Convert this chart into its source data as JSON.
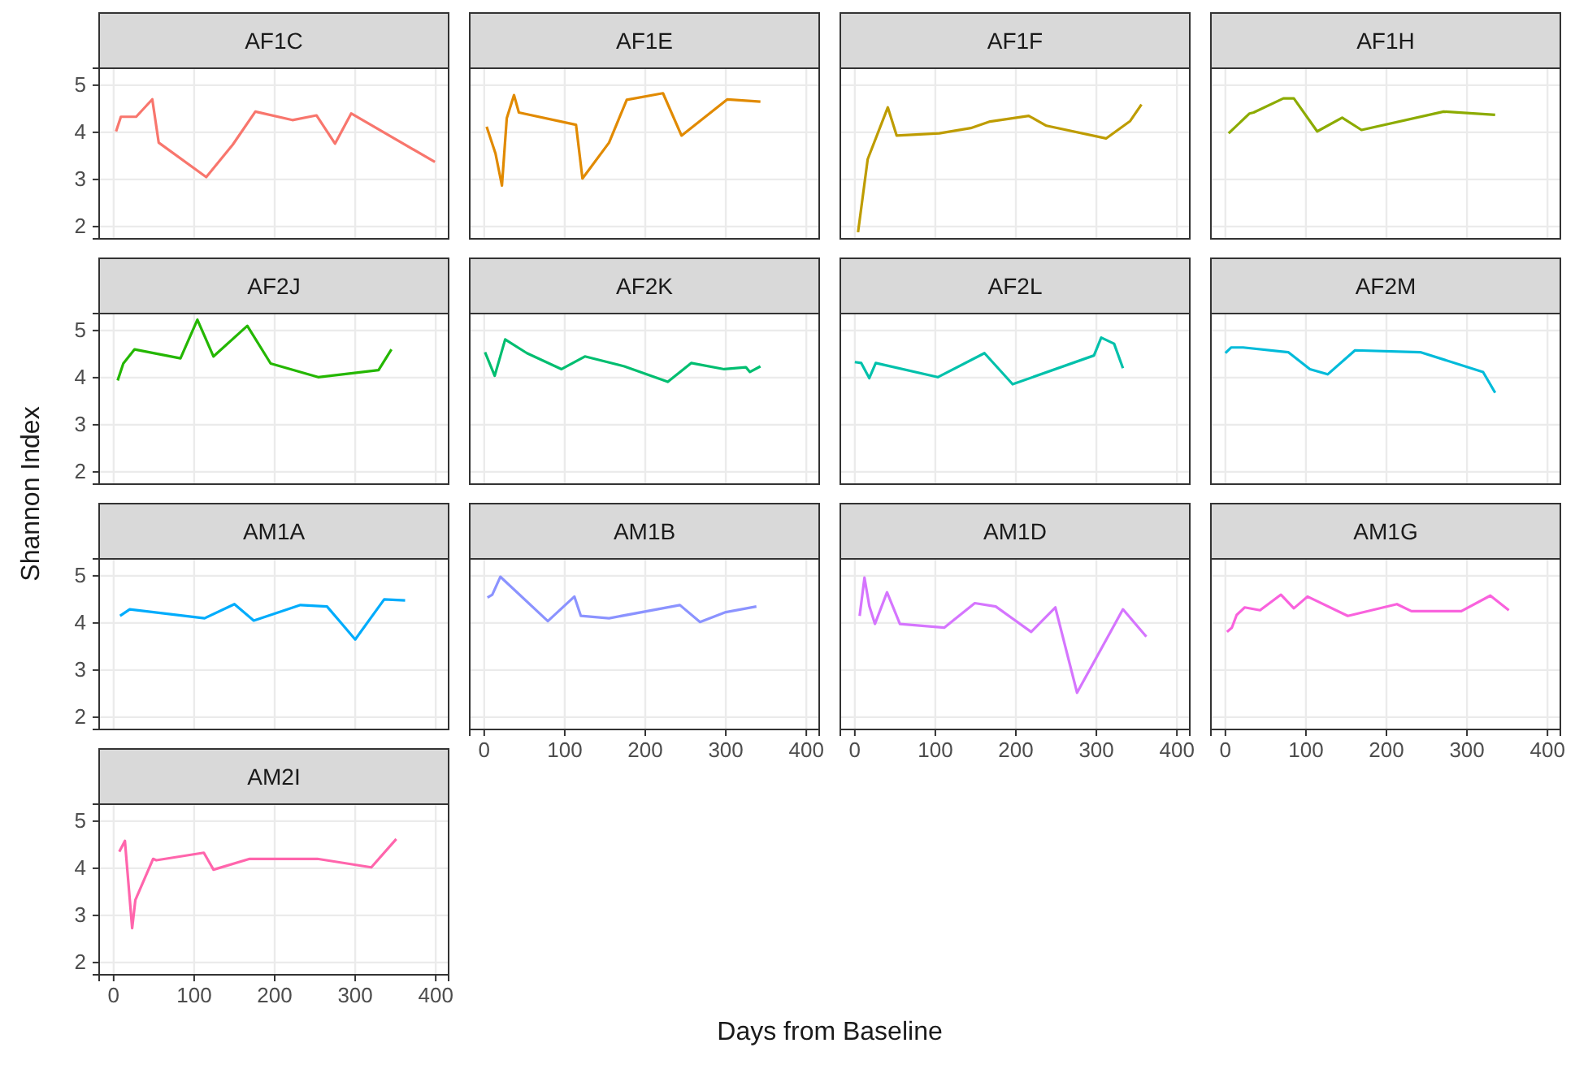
{
  "chart_data": [
    {
      "type": "line",
      "title": "AF1C",
      "annotations": [
        "Shannon Index",
        "Days from Baseline"
      ],
      "x": [
        3,
        9,
        28,
        48,
        56,
        115,
        148,
        176,
        222,
        252,
        275,
        295,
        399
      ],
      "series": [
        {
          "color": "#F8766D",
          "values": [
            4.02,
            4.33,
            4.33,
            4.7,
            3.78,
            3.05,
            3.74,
            4.44,
            4.26,
            4.36,
            3.76,
            4.4,
            3.37
          ]
        }
      ],
      "xlim": [
        -18,
        416
      ],
      "ylim": [
        1.74,
        5.36
      ],
      "xticks": [
        0,
        100,
        200,
        300,
        400
      ],
      "yticks": [
        2,
        3,
        4,
        5
      ],
      "grid": true,
      "tick_labels": "y"
    },
    {
      "type": "line",
      "title": "AF1E",
      "x": [
        3,
        14,
        22,
        28,
        37,
        43,
        114,
        122,
        155,
        177,
        222,
        245,
        302,
        343
      ],
      "series": [
        {
          "color": "#E18A00",
          "values": [
            4.12,
            3.55,
            2.87,
            4.3,
            4.79,
            4.42,
            4.16,
            3.02,
            3.78,
            4.69,
            4.83,
            3.93,
            4.7,
            4.65
          ]
        }
      ],
      "xlim": [
        -18,
        416
      ],
      "ylim": [
        1.74,
        5.36
      ],
      "xticks": [
        0,
        100,
        200,
        300,
        400
      ],
      "yticks": [
        2,
        3,
        4,
        5
      ],
      "grid": true,
      "tick_labels": false
    },
    {
      "type": "line",
      "title": "AF1F",
      "x": [
        4,
        16,
        41,
        52,
        105,
        144,
        168,
        216,
        238,
        312,
        342,
        356
      ],
      "series": [
        {
          "color": "#BE9C00",
          "values": [
            1.88,
            3.43,
            4.53,
            3.93,
            3.98,
            4.09,
            4.23,
            4.35,
            4.14,
            3.87,
            4.24,
            4.59
          ]
        }
      ],
      "xlim": [
        -18,
        416
      ],
      "ylim": [
        1.74,
        5.36
      ],
      "xticks": [
        0,
        100,
        200,
        300,
        400
      ],
      "yticks": [
        2,
        3,
        4,
        5
      ],
      "grid": true,
      "tick_labels": false
    },
    {
      "type": "line",
      "title": "AF1H",
      "x": [
        4,
        30,
        35,
        72,
        85,
        114,
        145,
        169,
        271,
        335
      ],
      "series": [
        {
          "color": "#8CAB00",
          "values": [
            3.98,
            4.4,
            4.42,
            4.72,
            4.72,
            4.02,
            4.31,
            4.05,
            4.44,
            4.37
          ]
        }
      ],
      "xlim": [
        -18,
        416
      ],
      "ylim": [
        1.74,
        5.36
      ],
      "xticks": [
        0,
        100,
        200,
        300,
        400
      ],
      "yticks": [
        2,
        3,
        4,
        5
      ],
      "grid": true,
      "tick_labels": false
    },
    {
      "type": "line",
      "title": "AF2J",
      "x": [
        5,
        12,
        26,
        83,
        104,
        124,
        166,
        195,
        254,
        329,
        345
      ],
      "series": [
        {
          "color": "#24B700",
          "values": [
            3.94,
            4.3,
            4.6,
            4.41,
            5.23,
            4.45,
            5.1,
            4.3,
            4.01,
            4.16,
            4.6
          ]
        }
      ],
      "xlim": [
        -18,
        416
      ],
      "ylim": [
        1.74,
        5.36
      ],
      "xticks": [
        0,
        100,
        200,
        300,
        400
      ],
      "yticks": [
        2,
        3,
        4,
        5
      ],
      "grid": true,
      "tick_labels": "y"
    },
    {
      "type": "line",
      "title": "AF2K",
      "x": [
        1,
        13,
        26,
        53,
        96,
        125,
        174,
        228,
        257,
        298,
        325,
        330,
        343
      ],
      "series": [
        {
          "color": "#00BE70",
          "values": [
            4.54,
            4.04,
            4.81,
            4.52,
            4.18,
            4.45,
            4.24,
            3.91,
            4.31,
            4.18,
            4.22,
            4.12,
            4.24
          ]
        }
      ],
      "xlim": [
        -18,
        416
      ],
      "ylim": [
        1.74,
        5.36
      ],
      "xticks": [
        0,
        100,
        200,
        300,
        400
      ],
      "yticks": [
        2,
        3,
        4,
        5
      ],
      "grid": true,
      "tick_labels": false
    },
    {
      "type": "line",
      "title": "AF2L",
      "x": [
        0,
        8,
        18,
        26,
        103,
        161,
        196,
        297,
        306,
        322,
        333
      ],
      "series": [
        {
          "color": "#00C1AB",
          "values": [
            4.33,
            4.31,
            3.99,
            4.31,
            4.01,
            4.52,
            3.86,
            4.47,
            4.85,
            4.72,
            4.2
          ]
        }
      ],
      "xlim": [
        -18,
        416
      ],
      "ylim": [
        1.74,
        5.36
      ],
      "xticks": [
        0,
        100,
        200,
        300,
        400
      ],
      "yticks": [
        2,
        3,
        4,
        5
      ],
      "grid": true,
      "tick_labels": false
    },
    {
      "type": "line",
      "title": "AF2M",
      "x": [
        0,
        7,
        22,
        78,
        105,
        127,
        161,
        242,
        320,
        335
      ],
      "series": [
        {
          "color": "#00BBDA",
          "values": [
            4.52,
            4.64,
            4.64,
            4.54,
            4.18,
            4.07,
            4.58,
            4.54,
            4.12,
            3.68
          ]
        }
      ],
      "xlim": [
        -18,
        416
      ],
      "ylim": [
        1.74,
        5.36
      ],
      "xticks": [
        0,
        100,
        200,
        300,
        400
      ],
      "yticks": [
        2,
        3,
        4,
        5
      ],
      "grid": true,
      "tick_labels": false
    },
    {
      "type": "line",
      "title": "AM1A",
      "x": [
        8,
        20,
        113,
        150,
        174,
        232,
        265,
        300,
        336,
        362
      ],
      "series": [
        {
          "color": "#00ACFC",
          "values": [
            4.15,
            4.29,
            4.1,
            4.4,
            4.05,
            4.38,
            4.35,
            3.65,
            4.5,
            4.48
          ]
        }
      ],
      "xlim": [
        -18,
        416
      ],
      "ylim": [
        1.74,
        5.36
      ],
      "xticks": [
        0,
        100,
        200,
        300,
        400
      ],
      "yticks": [
        2,
        3,
        4,
        5
      ],
      "grid": true,
      "tick_labels": "y"
    },
    {
      "type": "line",
      "title": "AM1B",
      "x": [
        4,
        10,
        20,
        79,
        112,
        120,
        155,
        243,
        268,
        300,
        338
      ],
      "series": [
        {
          "color": "#8B93FF",
          "values": [
            4.54,
            4.6,
            4.98,
            4.04,
            4.56,
            4.15,
            4.1,
            4.38,
            4.02,
            4.23,
            4.35
          ]
        }
      ],
      "xlim": [
        -18,
        416
      ],
      "ylim": [
        1.74,
        5.36
      ],
      "xticks": [
        0,
        100,
        200,
        300,
        400
      ],
      "yticks": [
        2,
        3,
        4,
        5
      ],
      "grid": true,
      "tick_labels": "x"
    },
    {
      "type": "line",
      "title": "AM1D",
      "x": [
        6,
        12,
        18,
        25,
        40,
        56,
        111,
        149,
        175,
        219,
        249,
        276,
        333,
        362
      ],
      "series": [
        {
          "color": "#D575FE",
          "values": [
            4.15,
            4.96,
            4.36,
            3.98,
            4.65,
            3.98,
            3.9,
            4.42,
            4.35,
            3.81,
            4.33,
            2.52,
            4.29,
            3.71
          ]
        }
      ],
      "xlim": [
        -18,
        416
      ],
      "ylim": [
        1.74,
        5.36
      ],
      "xticks": [
        0,
        100,
        200,
        300,
        400
      ],
      "yticks": [
        2,
        3,
        4,
        5
      ],
      "grid": true,
      "tick_labels": "x"
    },
    {
      "type": "line",
      "title": "AM1G",
      "x": [
        2,
        8,
        14,
        24,
        43,
        69,
        85,
        102,
        152,
        213,
        231,
        293,
        329,
        352
      ],
      "series": [
        {
          "color": "#F962DD",
          "values": [
            3.81,
            3.9,
            4.17,
            4.33,
            4.27,
            4.6,
            4.31,
            4.56,
            4.15,
            4.4,
            4.25,
            4.25,
            4.58,
            4.27
          ]
        }
      ],
      "xlim": [
        -18,
        416
      ],
      "ylim": [
        1.74,
        5.36
      ],
      "xticks": [
        0,
        100,
        200,
        300,
        400
      ],
      "yticks": [
        2,
        3,
        4,
        5
      ],
      "grid": true,
      "tick_labels": "x"
    },
    {
      "type": "line",
      "title": "AM2I",
      "x": [
        7,
        14,
        23,
        27,
        49,
        53,
        112,
        124,
        169,
        253,
        320,
        351
      ],
      "series": [
        {
          "color": "#FF65AC",
          "values": [
            4.35,
            4.58,
            2.73,
            3.33,
            4.2,
            4.17,
            4.33,
            3.97,
            4.2,
            4.2,
            4.02,
            4.62
          ]
        }
      ],
      "xlim": [
        -18,
        416
      ],
      "ylim": [
        1.74,
        5.36
      ],
      "xticks": [
        0,
        100,
        200,
        300,
        400
      ],
      "yticks": [
        2,
        3,
        4,
        5
      ],
      "grid": true
    }
  ]
}
